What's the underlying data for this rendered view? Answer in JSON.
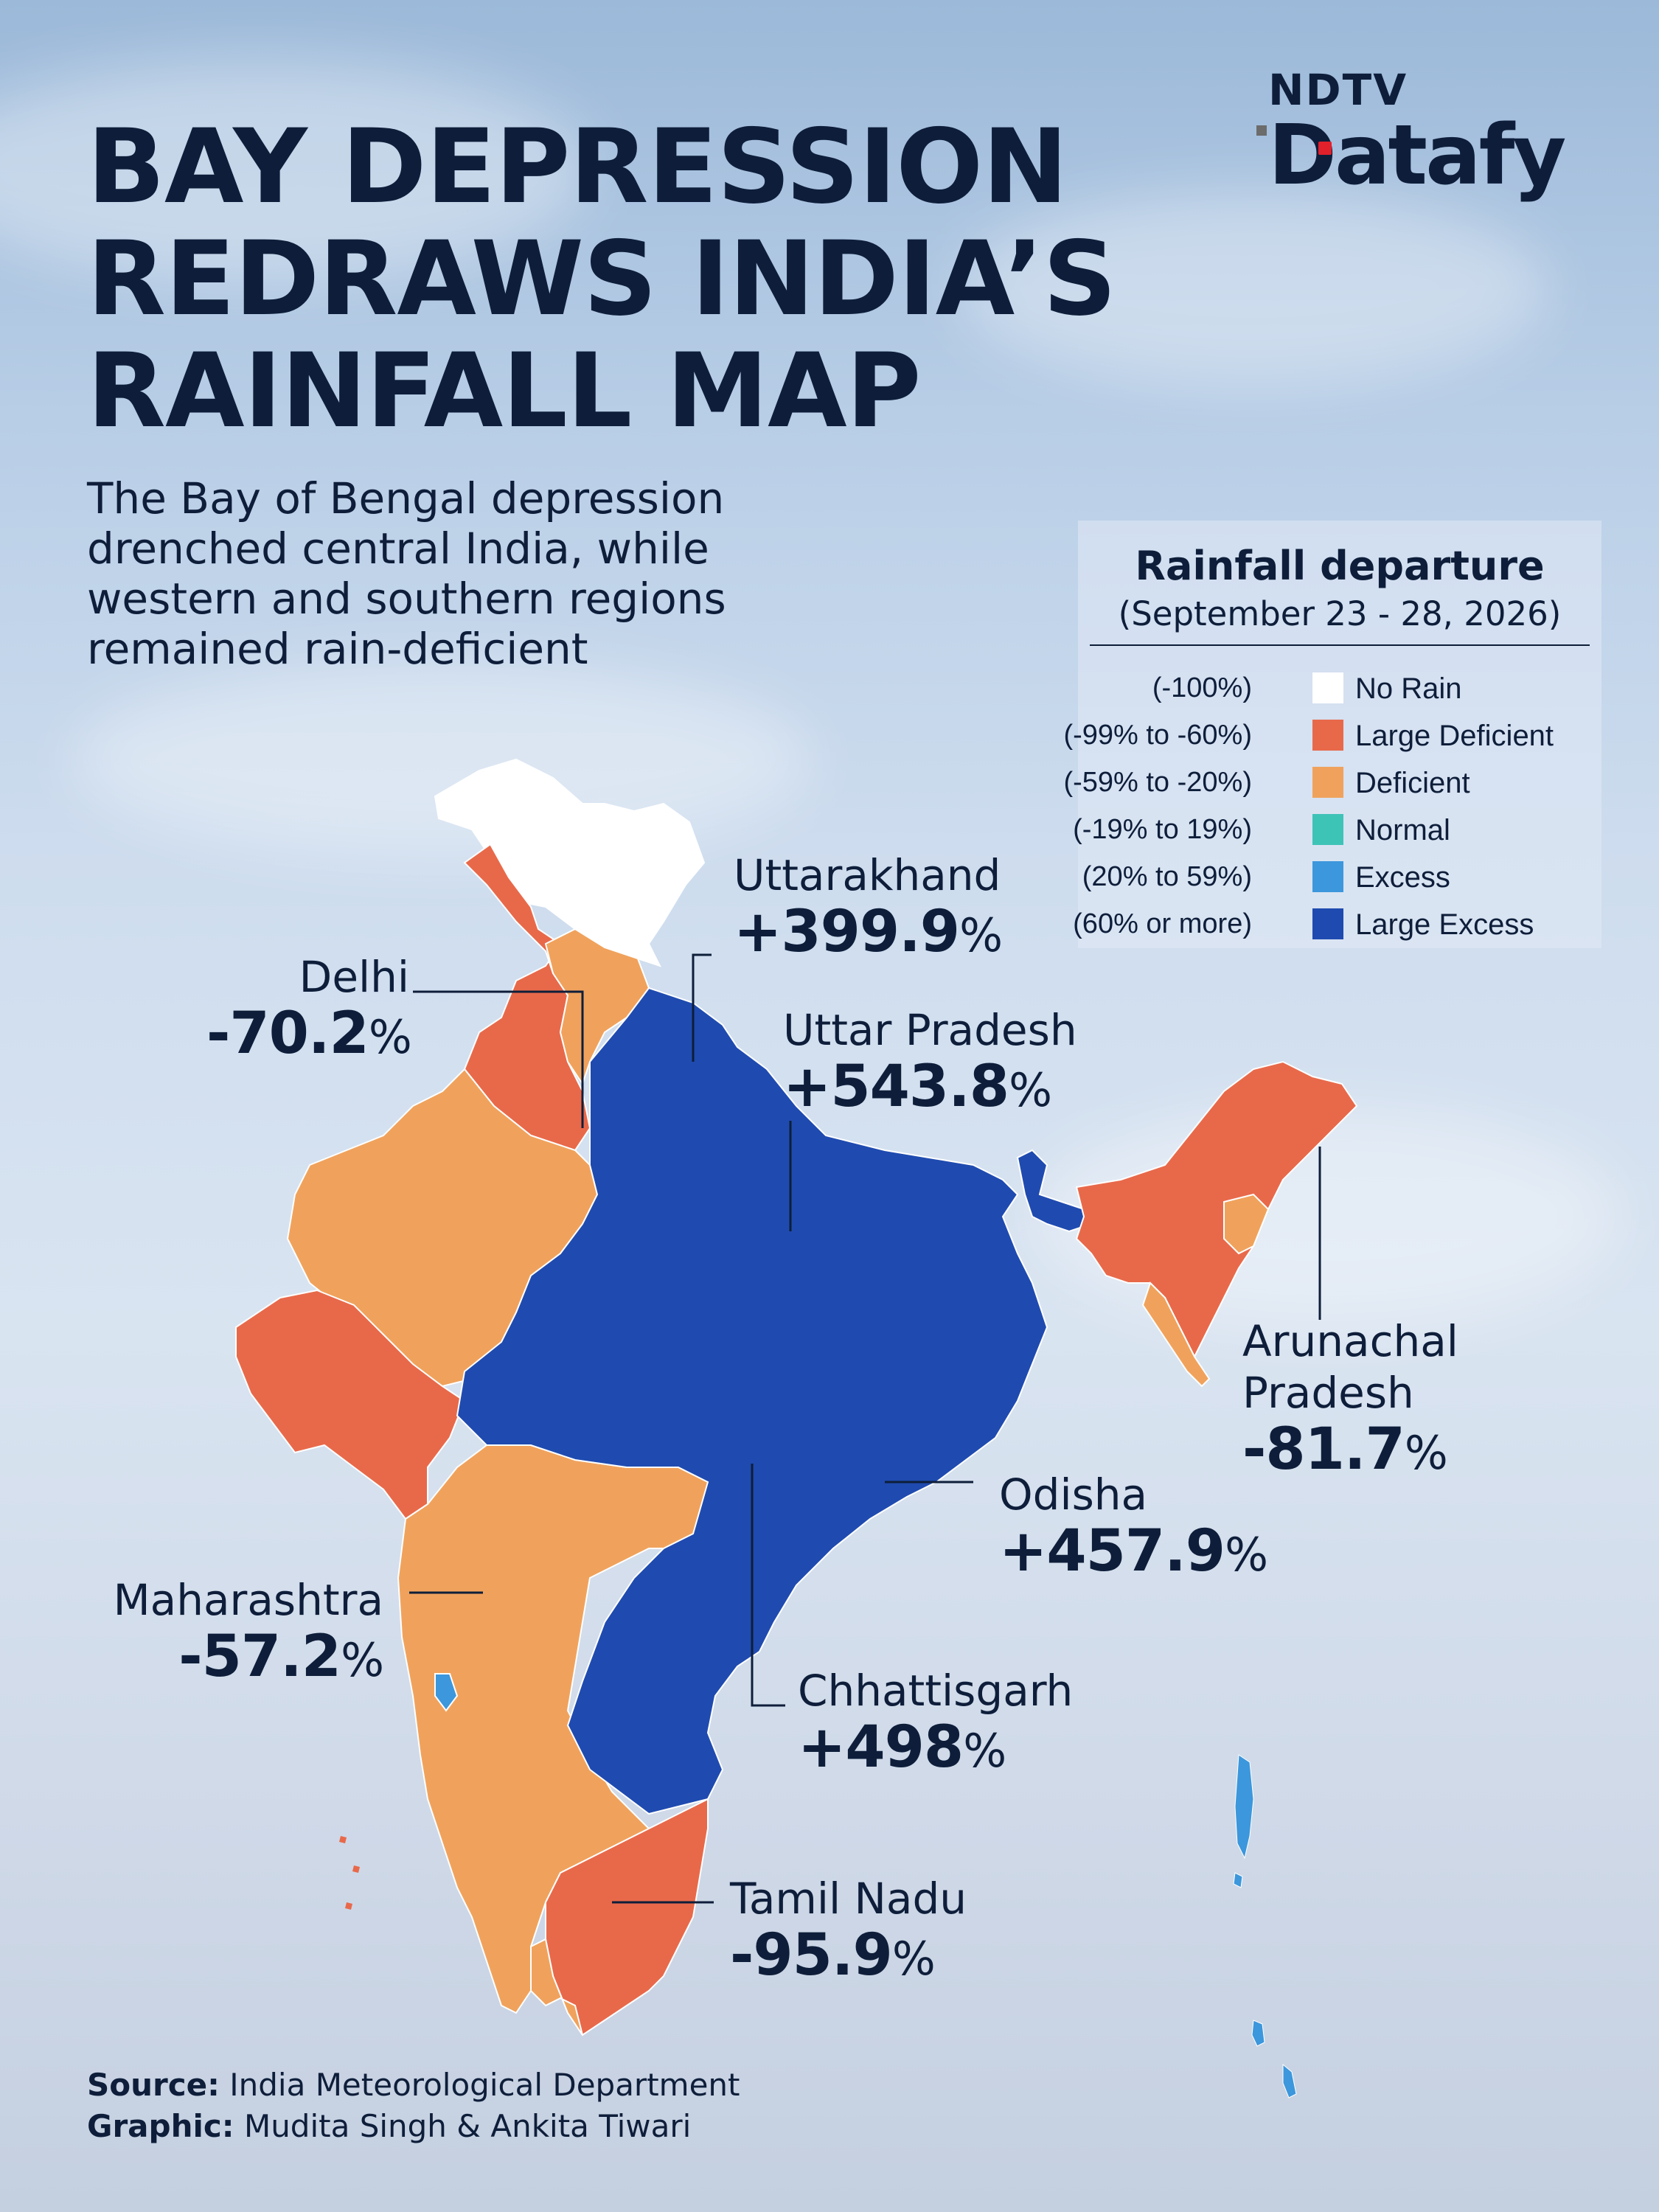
{
  "title_lines": [
    "BAY DEPRESSION",
    "REDRAWS INDIA’S",
    "RAINFALL MAP"
  ],
  "subtitle_lines": [
    "The Bay of Bengal depression",
    "drenched central India, while",
    "western and southern regions",
    "remained rain-deficient"
  ],
  "logo": {
    "top": "NDTV",
    "bottom": "Datafy"
  },
  "legend": {
    "title": "Rainfall departure",
    "subtitle": "(September 23 - 28, 2026)",
    "items": [
      {
        "range": "(-100%)",
        "label": "No Rain",
        "color": "#ffffff"
      },
      {
        "range": "(-99% to -60%)",
        "label": "Large Deficient",
        "color": "#e8694a"
      },
      {
        "range": "(-59% to -20%)",
        "label": "Deficient",
        "color": "#f0a25c"
      },
      {
        "range": "(-19% to 19%)",
        "label": "Normal",
        "color": "#3ec3b7"
      },
      {
        "range": "(20% to 59%)",
        "label": "Excess",
        "color": "#3c97dc"
      },
      {
        "range": "(60% or more)",
        "label": "Large Excess",
        "color": "#1f4bb0"
      }
    ]
  },
  "labels": {
    "uttarakhand": {
      "name": "Uttarakhand",
      "value": "+399.9",
      "pct": "%"
    },
    "delhi": {
      "name": "Delhi",
      "value": "-70.2",
      "pct": "%"
    },
    "uttar_pradesh": {
      "name": "Uttar Pradesh",
      "value": "+543.8",
      "pct": "%"
    },
    "arunachal": {
      "name1": "Arunachal",
      "name2": "Pradesh",
      "value": "-81.7",
      "pct": "%"
    },
    "odisha": {
      "name": "Odisha",
      "value": "+457.9",
      "pct": "%"
    },
    "maharashtra": {
      "name": "Maharashtra",
      "value": "-57.2",
      "pct": "%"
    },
    "chhattisgarh": {
      "name": "Chhattisgarh",
      "value": "+498",
      "pct": "%"
    },
    "tamil_nadu": {
      "name": "Tamil Nadu",
      "value": "-95.9",
      "pct": "%"
    }
  },
  "source": {
    "source_label": "Source:",
    "source_text": "India Meteorological Department",
    "graphic_label": "Graphic:",
    "graphic_text": "Mudita Singh & Ankita Tiwari"
  }
}
